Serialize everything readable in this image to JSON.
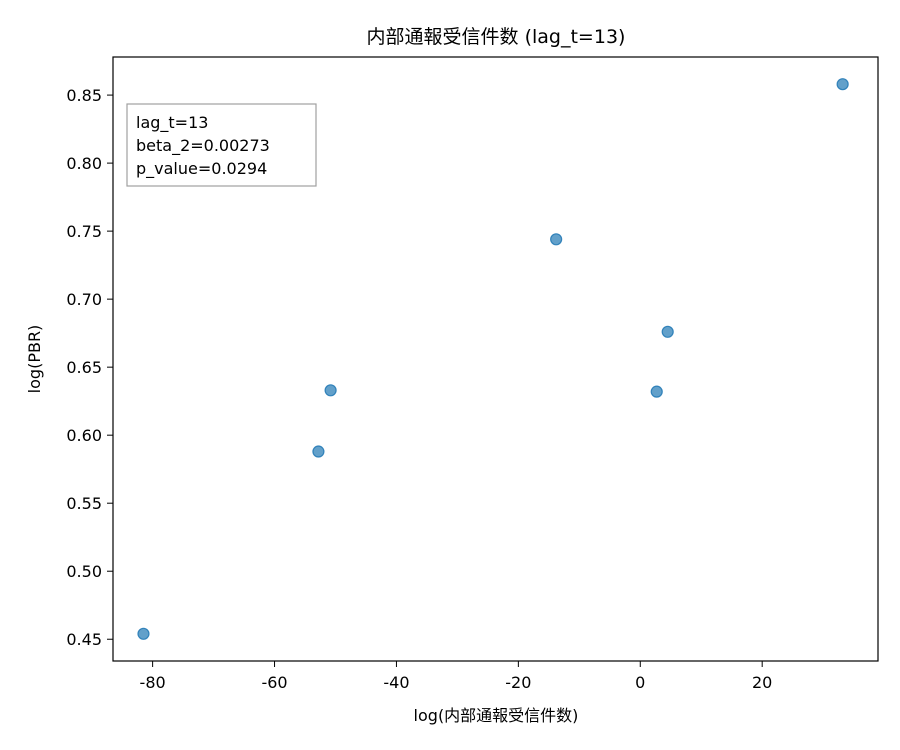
{
  "chart_data": {
    "type": "scatter",
    "title": "内部通報受信件数 (lag_t=13)",
    "xlabel": "log(内部通報受信件数)",
    "ylabel": "log(PBR)",
    "xlim": [
      -86.5,
      39.0
    ],
    "ylim": [
      0.434,
      0.878
    ],
    "xticks": [
      -80,
      -60,
      -40,
      -20,
      0,
      20
    ],
    "yticks": [
      0.45,
      0.5,
      0.55,
      0.6,
      0.65,
      0.7,
      0.75,
      0.8,
      0.85
    ],
    "xtick_labels": [
      "-80",
      "-60",
      "-40",
      "-20",
      "0",
      "20"
    ],
    "ytick_labels": [
      "0.45",
      "0.50",
      "0.55",
      "0.60",
      "0.65",
      "0.70",
      "0.75",
      "0.80",
      "0.85"
    ],
    "grid": false,
    "point_color": "#1f77b4",
    "points": [
      {
        "x": -81.5,
        "y": 0.454
      },
      {
        "x": -52.8,
        "y": 0.588
      },
      {
        "x": -50.8,
        "y": 0.633
      },
      {
        "x": -13.8,
        "y": 0.744
      },
      {
        "x": 2.7,
        "y": 0.632
      },
      {
        "x": 4.5,
        "y": 0.676
      },
      {
        "x": 33.2,
        "y": 0.858
      }
    ],
    "annotation": {
      "lines": [
        "lag_t=13",
        "beta_2=0.00273",
        "p_value=0.0294"
      ],
      "placement": "top-left"
    }
  }
}
